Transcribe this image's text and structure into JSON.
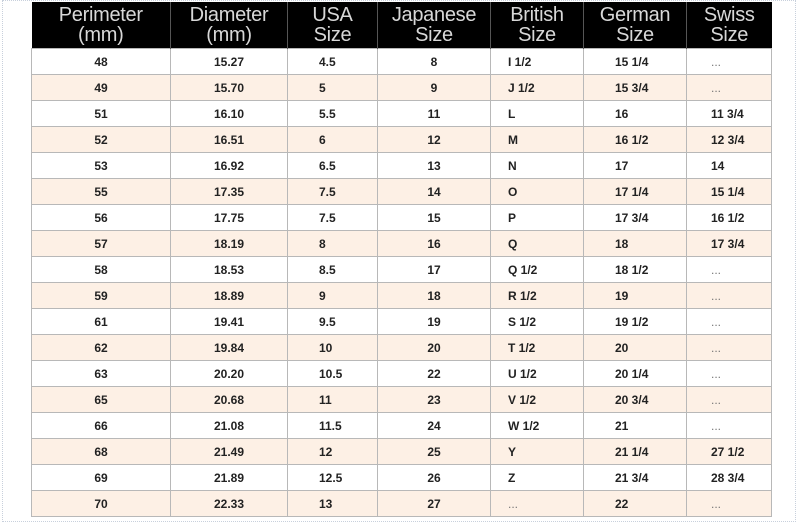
{
  "table": {
    "headers": [
      [
        "Perimeter",
        "(mm)"
      ],
      [
        "Diameter",
        "(mm)"
      ],
      [
        "USA",
        "Size"
      ],
      [
        "Japanese",
        "Size"
      ],
      [
        "British",
        "Size"
      ],
      [
        "German",
        "Size"
      ],
      [
        "Swiss",
        "Size"
      ]
    ],
    "rows": [
      [
        "48",
        "15.27",
        "4.5",
        "8",
        "I 1/2",
        "15 1/4",
        "..."
      ],
      [
        "49",
        "15.70",
        "5",
        "9",
        "J 1/2",
        "15 3/4",
        "..."
      ],
      [
        "51",
        "16.10",
        "5.5",
        "11",
        "L",
        "16",
        "11 3/4"
      ],
      [
        "52",
        "16.51",
        "6",
        "12",
        "M",
        "16 1/2",
        "12 3/4"
      ],
      [
        "53",
        "16.92",
        "6.5",
        "13",
        "N",
        "17",
        "14"
      ],
      [
        "55",
        "17.35",
        "7.5",
        "14",
        "O",
        "17 1/4",
        "15 1/4"
      ],
      [
        "56",
        "17.75",
        "7.5",
        "15",
        "P",
        "17 3/4",
        "16 1/2"
      ],
      [
        "57",
        "18.19",
        "8",
        "16",
        "Q",
        "18",
        "17 3/4"
      ],
      [
        "58",
        "18.53",
        "8.5",
        "17",
        "Q 1/2",
        "18 1/2",
        "..."
      ],
      [
        "59",
        "18.89",
        "9",
        "18",
        "R 1/2",
        "19",
        "..."
      ],
      [
        "61",
        "19.41",
        "9.5",
        "19",
        "S 1/2",
        "19 1/2",
        "..."
      ],
      [
        "62",
        "19.84",
        "10",
        "20",
        "T 1/2",
        "20",
        "..."
      ],
      [
        "63",
        "20.20",
        "10.5",
        "22",
        "U 1/2",
        "20 1/4",
        "..."
      ],
      [
        "65",
        "20.68",
        "11",
        "23",
        "V 1/2",
        "20 3/4",
        "..."
      ],
      [
        "66",
        "21.08",
        "11.5",
        "24",
        "W 1/2",
        "21",
        "..."
      ],
      [
        "68",
        "21.49",
        "12",
        "25",
        "Y",
        "21 1/4",
        "27 1/2"
      ],
      [
        "69",
        "21.89",
        "12.5",
        "26",
        "Z",
        "21 3/4",
        "28 3/4"
      ],
      [
        "70",
        "22.33",
        "13",
        "27",
        "...",
        "22",
        "..."
      ]
    ]
  },
  "colors": {
    "header_bg": "#000000",
    "header_text": "#d8d8d8",
    "row_alt": "#fdf0e5",
    "row": "#ffffff"
  }
}
